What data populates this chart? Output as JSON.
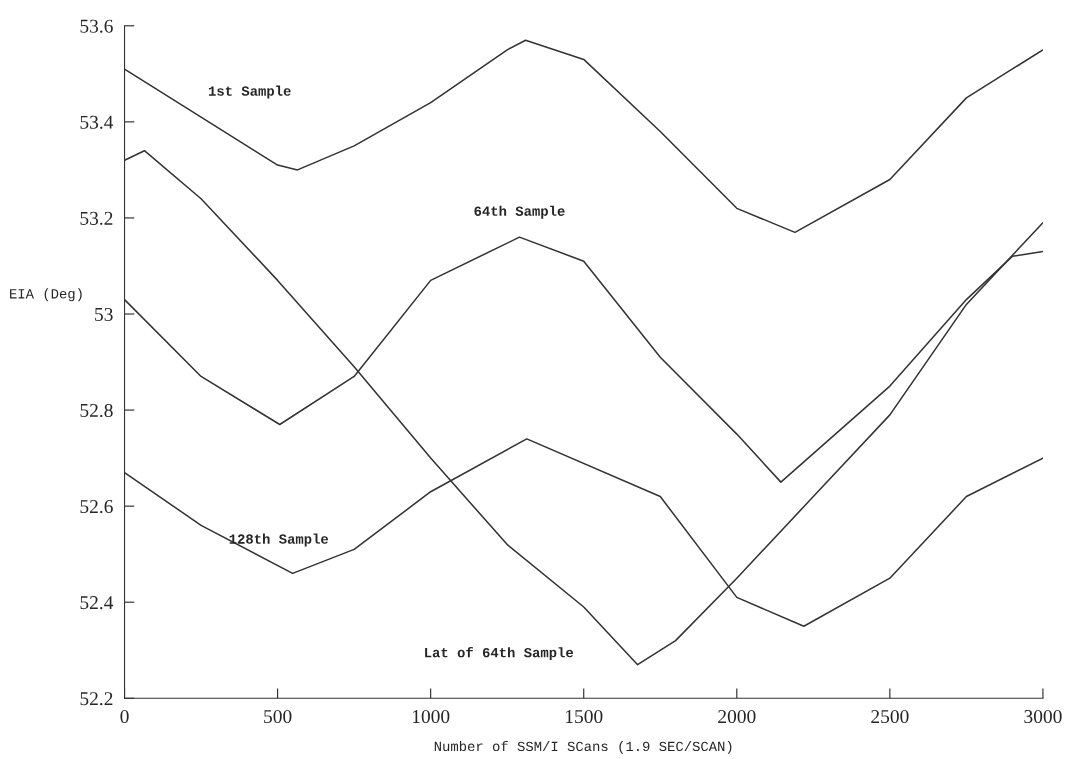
{
  "chart_data": {
    "type": "line",
    "xlabel": "Number of SSM/I SCans (1.9 SEC/SCAN)",
    "ylabel": "EIA (Deg)",
    "xlim": [
      0,
      3000
    ],
    "xticks": [
      0,
      500,
      1000,
      1500,
      2000,
      2500,
      3000
    ],
    "ylim": [
      52.2,
      53.6
    ],
    "yticks": [
      52.2,
      52.4,
      52.6,
      52.8,
      53,
      53.2,
      53.4,
      53.6
    ],
    "grid": false,
    "legend": false,
    "line_style": "solid",
    "series": [
      {
        "name": "1st Sample",
        "color": "#333333",
        "x": [
          0,
          250,
          500,
          565,
          750,
          1000,
          1250,
          1310,
          1500,
          1750,
          2000,
          2190,
          2500,
          2750,
          3000
        ],
        "values": [
          53.51,
          53.41,
          53.31,
          53.3,
          53.35,
          53.44,
          53.55,
          53.57,
          53.53,
          53.38,
          53.22,
          53.17,
          53.28,
          53.45,
          53.55
        ]
      },
      {
        "name": "64th Sample",
        "color": "#333333",
        "x": [
          0,
          250,
          507,
          750,
          1000,
          1290,
          1500,
          1750,
          2000,
          2144,
          2500,
          2750,
          2900,
          3000
        ],
        "values": [
          53.03,
          52.87,
          52.77,
          52.87,
          53.07,
          53.16,
          53.11,
          52.91,
          52.75,
          52.65,
          52.85,
          53.03,
          53.12,
          53.13
        ]
      },
      {
        "name": "Lat of 64th Sample",
        "color": "#333333",
        "x": [
          0,
          65,
          250,
          500,
          750,
          1000,
          1250,
          1500,
          1676,
          1800,
          2000,
          2250,
          2500,
          2750,
          3000
        ],
        "values": [
          53.32,
          53.34,
          53.24,
          53.07,
          52.89,
          52.7,
          52.52,
          52.39,
          52.27,
          52.32,
          52.45,
          52.62,
          52.79,
          53.02,
          53.19
        ]
      },
      {
        "name": "128th Sample",
        "color": "#333333",
        "x": [
          0,
          250,
          549,
          750,
          1000,
          1314,
          1750,
          2000,
          2219,
          2500,
          2750,
          3000
        ],
        "values": [
          52.67,
          52.56,
          52.46,
          52.51,
          52.63,
          52.74,
          52.62,
          52.41,
          52.35,
          52.45,
          52.62,
          52.7
        ]
      }
    ]
  }
}
